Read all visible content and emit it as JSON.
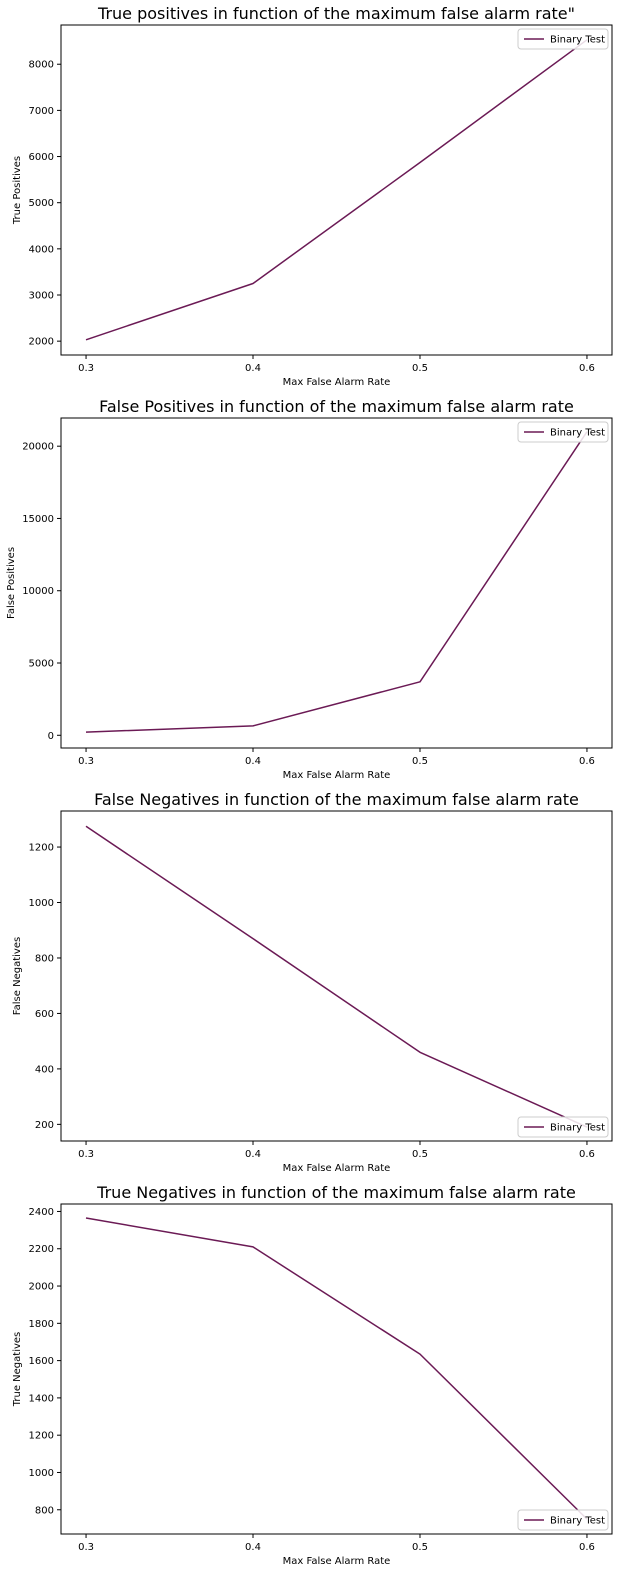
{
  "colors": {
    "line": "#6b1a55",
    "frame": "#000000",
    "legend_border": "#cccccc"
  },
  "chart_data": [
    {
      "type": "line",
      "title": "True positives in function of the maximum false alarm rate\"",
      "xlabel": "Max False Alarm Rate",
      "ylabel": "True Positives",
      "x": [
        0.3,
        0.4,
        0.5,
        0.6
      ],
      "xticks": [
        "0.3",
        "0.4",
        "0.5",
        "0.6"
      ],
      "xlim": [
        0.285,
        0.615
      ],
      "ylim": [
        1700,
        8850
      ],
      "yticks": [
        2000,
        3000,
        4000,
        5000,
        6000,
        7000,
        8000
      ],
      "legend_loc": "upper-right",
      "series": [
        {
          "name": "Binary Test",
          "values": [
            2030,
            3250,
            5870,
            8530
          ]
        }
      ]
    },
    {
      "type": "line",
      "title": "False Positives in function of the maximum false alarm  rate",
      "xlabel": "Max False Alarm Rate",
      "ylabel": "False Positives",
      "x": [
        0.3,
        0.4,
        0.5,
        0.6
      ],
      "xticks": [
        "0.3",
        "0.4",
        "0.5",
        "0.6"
      ],
      "xlim": [
        0.285,
        0.615
      ],
      "ylim": [
        -880,
        21950
      ],
      "yticks": [
        0,
        5000,
        10000,
        15000,
        20000
      ],
      "legend_loc": "upper-right",
      "series": [
        {
          "name": "Binary Test",
          "values": [
            220,
            650,
            3700,
            21000
          ]
        }
      ]
    },
    {
      "type": "line",
      "title": "False Negatives in function of the maximum false alarm  rate",
      "xlabel": "Max False Alarm Rate",
      "ylabel": "False Negatives",
      "x": [
        0.3,
        0.4,
        0.5,
        0.6
      ],
      "xticks": [
        "0.3",
        "0.4",
        "0.5",
        "0.6"
      ],
      "xlim": [
        0.285,
        0.615
      ],
      "ylim": [
        140,
        1330
      ],
      "yticks": [
        200,
        400,
        600,
        800,
        1000,
        1200
      ],
      "legend_loc": "lower-right",
      "series": [
        {
          "name": "Binary Test",
          "values": [
            1275,
            870,
            460,
            190
          ]
        }
      ]
    },
    {
      "type": "line",
      "title": "True Negatives in function of the maximum false alarm  rate",
      "xlabel": "Max False Alarm Rate",
      "ylabel": "True Negatives",
      "x": [
        0.3,
        0.4,
        0.5,
        0.6
      ],
      "xticks": [
        "0.3",
        "0.4",
        "0.5",
        "0.6"
      ],
      "xlim": [
        0.285,
        0.615
      ],
      "ylim": [
        670,
        2440
      ],
      "yticks": [
        800,
        1000,
        1200,
        1400,
        1600,
        1800,
        2000,
        2200,
        2400
      ],
      "legend_loc": "lower-right",
      "series": [
        {
          "name": "Binary Test",
          "values": [
            2365,
            2210,
            1635,
            750
          ]
        }
      ]
    }
  ]
}
